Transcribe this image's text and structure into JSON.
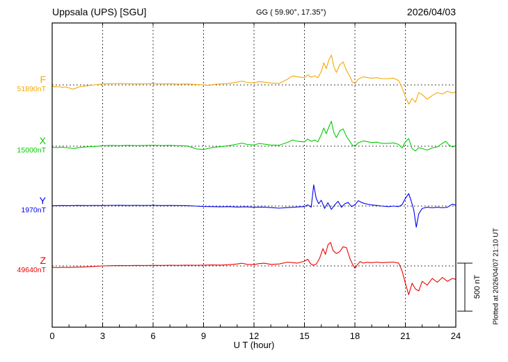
{
  "header": {
    "station": "Uppsala (UPS)  [SGU]",
    "coords": "GG ( 59.90°, 17.35°)",
    "date": "2026/04/03"
  },
  "axis": {
    "xlabel": "U T (hour)"
  },
  "scale_bar": {
    "label": "500 nT"
  },
  "footer": {
    "plotted_at": "Plotted at 2026/04/07 21:10 UT"
  },
  "chart_data": {
    "type": "line",
    "title": "Uppsala (UPS) [SGU] magnetogram 2026/04/03",
    "xlabel": "U T (hour)",
    "xlim": [
      0,
      24
    ],
    "x_ticks": [
      0,
      3,
      6,
      9,
      12,
      15,
      18,
      21,
      24
    ],
    "grid": "dotted vertical gridlines every 3 h; dotted horizontal baseline per component",
    "legend_position": "left margin labels",
    "scale_bar_nT": 500,
    "series": [
      {
        "name": "F",
        "base": "51890nT",
        "color": "#F5A800",
        "units": "nT offset from 51890",
        "points": [
          [
            0,
            -15
          ],
          [
            0.2,
            -20
          ],
          [
            0.4,
            -18
          ],
          [
            0.6,
            -25
          ],
          [
            0.8,
            -20
          ],
          [
            1.0,
            -30
          ],
          [
            1.2,
            -45
          ],
          [
            1.4,
            -35
          ],
          [
            1.6,
            -20
          ],
          [
            1.8,
            -15
          ],
          [
            2.0,
            -10
          ],
          [
            2.5,
            0
          ],
          [
            3.0,
            10
          ],
          [
            3.5,
            12
          ],
          [
            4.0,
            15
          ],
          [
            4.5,
            12
          ],
          [
            5.0,
            10
          ],
          [
            5.5,
            12
          ],
          [
            6.0,
            14
          ],
          [
            6.5,
            10
          ],
          [
            7.0,
            12
          ],
          [
            7.5,
            8
          ],
          [
            8.0,
            10
          ],
          [
            8.5,
            5
          ],
          [
            9.0,
            0
          ],
          [
            9.3,
            -5
          ],
          [
            9.6,
            5
          ],
          [
            10.0,
            10
          ],
          [
            10.5,
            15
          ],
          [
            11.0,
            30
          ],
          [
            11.3,
            40
          ],
          [
            11.6,
            25
          ],
          [
            12.0,
            20
          ],
          [
            12.3,
            35
          ],
          [
            12.6,
            30
          ],
          [
            13.0,
            20
          ],
          [
            13.5,
            15
          ],
          [
            14.0,
            60
          ],
          [
            14.3,
            95
          ],
          [
            14.6,
            85
          ],
          [
            15.0,
            75
          ],
          [
            15.2,
            105
          ],
          [
            15.4,
            80
          ],
          [
            15.6,
            95
          ],
          [
            15.8,
            75
          ],
          [
            16.0,
            140
          ],
          [
            16.15,
            230
          ],
          [
            16.3,
            170
          ],
          [
            16.45,
            260
          ],
          [
            16.6,
            310
          ],
          [
            16.75,
            190
          ],
          [
            16.9,
            130
          ],
          [
            17.1,
            210
          ],
          [
            17.3,
            240
          ],
          [
            17.5,
            150
          ],
          [
            17.7,
            90
          ],
          [
            17.85,
            30
          ],
          [
            18.0,
            15
          ],
          [
            18.2,
            60
          ],
          [
            18.5,
            85
          ],
          [
            18.8,
            75
          ],
          [
            19.0,
            70
          ],
          [
            19.3,
            75
          ],
          [
            19.6,
            65
          ],
          [
            20.0,
            65
          ],
          [
            20.3,
            70
          ],
          [
            20.6,
            45
          ],
          [
            20.8,
            -25
          ],
          [
            21.0,
            -120
          ],
          [
            21.2,
            -200
          ],
          [
            21.4,
            -140
          ],
          [
            21.6,
            -180
          ],
          [
            21.8,
            -80
          ],
          [
            22.0,
            -100
          ],
          [
            22.3,
            -150
          ],
          [
            22.6,
            -110
          ],
          [
            22.9,
            -80
          ],
          [
            23.2,
            -95
          ],
          [
            23.5,
            -65
          ],
          [
            23.8,
            -85
          ],
          [
            24.0,
            -70
          ]
        ]
      },
      {
        "name": "X",
        "base": "15000nT",
        "color": "#00CC00",
        "units": "nT offset from 15000",
        "points": [
          [
            0,
            -12
          ],
          [
            0.3,
            -15
          ],
          [
            0.6,
            -10
          ],
          [
            1.0,
            -18
          ],
          [
            1.3,
            -24
          ],
          [
            1.6,
            -14
          ],
          [
            2.0,
            -8
          ],
          [
            2.5,
            -3
          ],
          [
            3.0,
            5
          ],
          [
            3.5,
            8
          ],
          [
            4.0,
            6
          ],
          [
            4.5,
            9
          ],
          [
            5.0,
            6
          ],
          [
            5.5,
            8
          ],
          [
            6.0,
            10
          ],
          [
            6.5,
            7
          ],
          [
            7.0,
            9
          ],
          [
            7.5,
            5
          ],
          [
            8.0,
            2
          ],
          [
            8.3,
            -12
          ],
          [
            8.6,
            -28
          ],
          [
            9.0,
            -35
          ],
          [
            9.3,
            -22
          ],
          [
            9.6,
            -12
          ],
          [
            10.0,
            -5
          ],
          [
            10.5,
            5
          ],
          [
            11.0,
            22
          ],
          [
            11.3,
            32
          ],
          [
            11.6,
            18
          ],
          [
            12.0,
            12
          ],
          [
            12.3,
            28
          ],
          [
            12.6,
            22
          ],
          [
            13.0,
            12
          ],
          [
            13.5,
            10
          ],
          [
            14.0,
            40
          ],
          [
            14.3,
            65
          ],
          [
            14.6,
            50
          ],
          [
            15.0,
            45
          ],
          [
            15.2,
            75
          ],
          [
            15.4,
            50
          ],
          [
            15.6,
            65
          ],
          [
            15.8,
            45
          ],
          [
            16.0,
            120
          ],
          [
            16.15,
            190
          ],
          [
            16.3,
            130
          ],
          [
            16.45,
            200
          ],
          [
            16.6,
            260
          ],
          [
            16.75,
            140
          ],
          [
            16.9,
            90
          ],
          [
            17.1,
            160
          ],
          [
            17.3,
            180
          ],
          [
            17.5,
            100
          ],
          [
            17.7,
            50
          ],
          [
            17.85,
            10
          ],
          [
            18.0,
            0
          ],
          [
            18.2,
            35
          ],
          [
            18.5,
            55
          ],
          [
            18.8,
            45
          ],
          [
            19.0,
            38
          ],
          [
            19.3,
            42
          ],
          [
            19.6,
            30
          ],
          [
            20.0,
            30
          ],
          [
            20.3,
            35
          ],
          [
            20.6,
            18
          ],
          [
            20.8,
            -18
          ],
          [
            21.0,
            45
          ],
          [
            21.2,
            80
          ],
          [
            21.4,
            -25
          ],
          [
            21.6,
            -50
          ],
          [
            21.8,
            -15
          ],
          [
            22.0,
            -25
          ],
          [
            22.3,
            -40
          ],
          [
            22.6,
            -18
          ],
          [
            22.9,
            -8
          ],
          [
            23.2,
            30
          ],
          [
            23.4,
            50
          ],
          [
            23.6,
            12
          ],
          [
            23.8,
            -8
          ],
          [
            24.0,
            5
          ]
        ]
      },
      {
        "name": "Y",
        "base": "1970nT",
        "color": "#0000EE",
        "units": "nT offset from 1970",
        "points": [
          [
            0,
            3
          ],
          [
            0.5,
            5
          ],
          [
            1.0,
            4
          ],
          [
            1.5,
            6
          ],
          [
            2.0,
            5
          ],
          [
            2.5,
            6
          ],
          [
            3.0,
            5
          ],
          [
            3.5,
            7
          ],
          [
            4.0,
            8
          ],
          [
            4.5,
            6
          ],
          [
            5.0,
            7
          ],
          [
            5.5,
            6
          ],
          [
            6.0,
            7
          ],
          [
            6.5,
            5
          ],
          [
            7.0,
            6
          ],
          [
            7.5,
            5
          ],
          [
            8.0,
            4
          ],
          [
            8.5,
            0
          ],
          [
            9.0,
            -4
          ],
          [
            9.5,
            -6
          ],
          [
            10.0,
            -8
          ],
          [
            10.5,
            -6
          ],
          [
            11.0,
            -10
          ],
          [
            11.5,
            -8
          ],
          [
            12.0,
            -12
          ],
          [
            12.5,
            -10
          ],
          [
            13.0,
            -16
          ],
          [
            13.5,
            -22
          ],
          [
            14.0,
            -16
          ],
          [
            14.5,
            -10
          ],
          [
            15.0,
            -5
          ],
          [
            15.2,
            12
          ],
          [
            15.4,
            -12
          ],
          [
            15.55,
            220
          ],
          [
            15.7,
            80
          ],
          [
            15.85,
            25
          ],
          [
            16.0,
            60
          ],
          [
            16.2,
            -25
          ],
          [
            16.4,
            35
          ],
          [
            16.6,
            -35
          ],
          [
            16.8,
            12
          ],
          [
            17.0,
            50
          ],
          [
            17.2,
            -12
          ],
          [
            17.4,
            25
          ],
          [
            17.6,
            38
          ],
          [
            17.8,
            -6
          ],
          [
            18.0,
            12
          ],
          [
            18.2,
            55
          ],
          [
            18.4,
            38
          ],
          [
            18.6,
            25
          ],
          [
            18.8,
            18
          ],
          [
            19.0,
            12
          ],
          [
            19.3,
            6
          ],
          [
            19.6,
            0
          ],
          [
            20.0,
            -6
          ],
          [
            20.3,
            0
          ],
          [
            20.6,
            -6
          ],
          [
            20.8,
            12
          ],
          [
            21.0,
            80
          ],
          [
            21.2,
            130
          ],
          [
            21.35,
            50
          ],
          [
            21.5,
            -40
          ],
          [
            21.65,
            -220
          ],
          [
            21.8,
            -80
          ],
          [
            22.0,
            -25
          ],
          [
            22.3,
            -12
          ],
          [
            22.6,
            -18
          ],
          [
            22.9,
            -12
          ],
          [
            23.2,
            -18
          ],
          [
            23.5,
            -12
          ],
          [
            23.8,
            20
          ],
          [
            24.0,
            8
          ]
        ]
      },
      {
        "name": "Z",
        "base": "49640nT",
        "color": "#EE0000",
        "units": "nT offset from 49640",
        "points": [
          [
            0,
            -15
          ],
          [
            0.3,
            -18
          ],
          [
            0.6,
            -14
          ],
          [
            1.0,
            -16
          ],
          [
            1.5,
            -12
          ],
          [
            2.0,
            -10
          ],
          [
            2.5,
            -5
          ],
          [
            3.0,
            0
          ],
          [
            3.5,
            2
          ],
          [
            4.0,
            4
          ],
          [
            4.5,
            3
          ],
          [
            5.0,
            5
          ],
          [
            5.5,
            4
          ],
          [
            6.0,
            6
          ],
          [
            6.5,
            5
          ],
          [
            7.0,
            7
          ],
          [
            7.5,
            6
          ],
          [
            8.0,
            8
          ],
          [
            8.5,
            7
          ],
          [
            9.0,
            8
          ],
          [
            9.5,
            10
          ],
          [
            10.0,
            9
          ],
          [
            10.5,
            12
          ],
          [
            11.0,
            20
          ],
          [
            11.3,
            28
          ],
          [
            11.6,
            16
          ],
          [
            12.0,
            14
          ],
          [
            12.3,
            24
          ],
          [
            12.6,
            28
          ],
          [
            13.0,
            16
          ],
          [
            13.5,
            20
          ],
          [
            14.0,
            40
          ],
          [
            14.3,
            34
          ],
          [
            14.6,
            30
          ],
          [
            15.0,
            50
          ],
          [
            15.2,
            70
          ],
          [
            15.35,
            25
          ],
          [
            15.5,
            8
          ],
          [
            15.7,
            18
          ],
          [
            15.9,
            80
          ],
          [
            16.1,
            180
          ],
          [
            16.25,
            120
          ],
          [
            16.4,
            220
          ],
          [
            16.55,
            245
          ],
          [
            16.7,
            160
          ],
          [
            16.9,
            130
          ],
          [
            17.1,
            150
          ],
          [
            17.3,
            200
          ],
          [
            17.5,
            190
          ],
          [
            17.7,
            80
          ],
          [
            17.85,
            20
          ],
          [
            18.0,
            -25
          ],
          [
            18.15,
            12
          ],
          [
            18.3,
            45
          ],
          [
            18.5,
            30
          ],
          [
            18.7,
            38
          ],
          [
            19.0,
            34
          ],
          [
            19.3,
            40
          ],
          [
            19.6,
            34
          ],
          [
            20.0,
            38
          ],
          [
            20.3,
            40
          ],
          [
            20.6,
            30
          ],
          [
            20.8,
            -50
          ],
          [
            21.0,
            -180
          ],
          [
            21.2,
            -300
          ],
          [
            21.4,
            -180
          ],
          [
            21.6,
            -240
          ],
          [
            21.8,
            -260
          ],
          [
            22.0,
            -160
          ],
          [
            22.3,
            -200
          ],
          [
            22.6,
            -130
          ],
          [
            22.9,
            -170
          ],
          [
            23.2,
            -120
          ],
          [
            23.5,
            -160
          ],
          [
            23.8,
            -130
          ],
          [
            24.0,
            -140
          ]
        ]
      }
    ]
  }
}
